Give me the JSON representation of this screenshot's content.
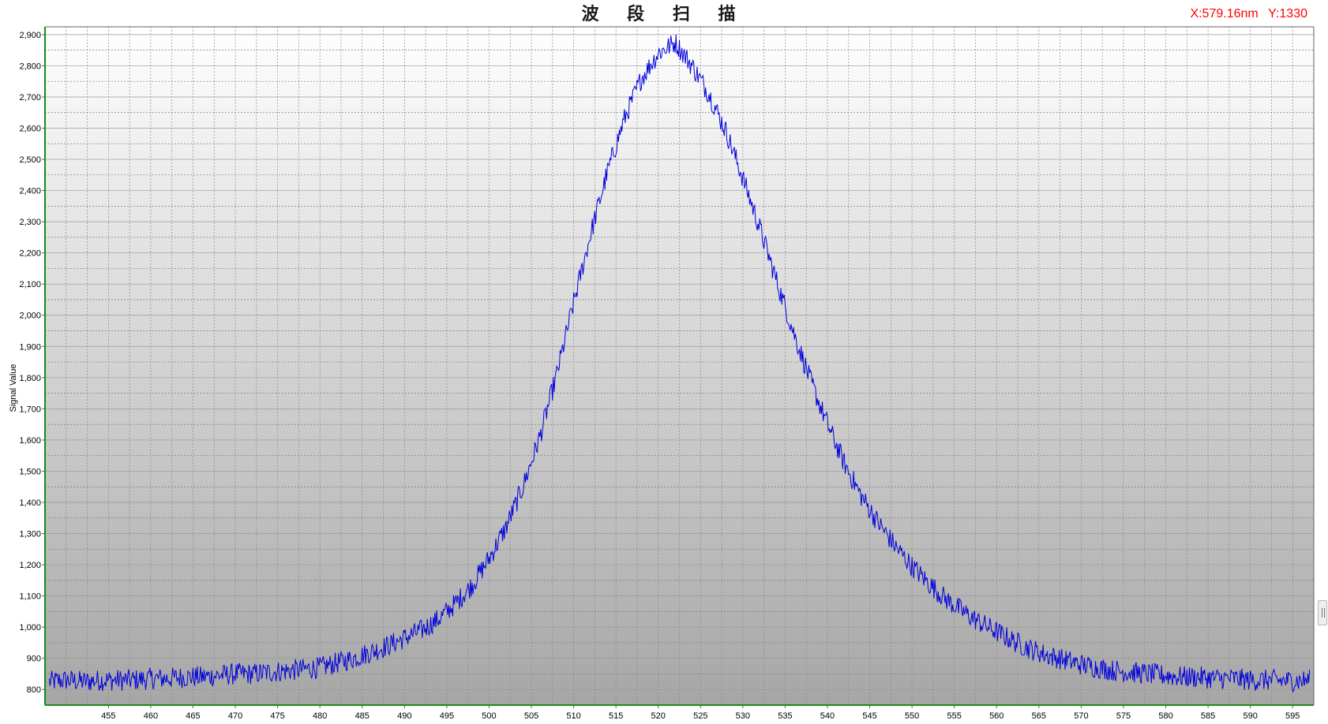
{
  "title": "波 段 扫 描",
  "cursor_readout": {
    "x": "X:579.16nm",
    "y": "Y:1330"
  },
  "colors": {
    "series": "#0000dd",
    "axis": "#1a8a1a",
    "readout": "#ff0000",
    "plot_top": "#ffffff",
    "plot_bottom": "#a6a6a6"
  },
  "chart_data": {
    "type": "line",
    "title": "波 段 扫 描",
    "xlabel": "",
    "ylabel": "Signal Value",
    "xlim": [
      447.5,
      597.5
    ],
    "ylim": [
      750,
      2925
    ],
    "grid": true,
    "x_ticks": [
      455,
      460,
      465,
      470,
      475,
      480,
      485,
      490,
      495,
      500,
      505,
      510,
      515,
      520,
      525,
      530,
      535,
      540,
      545,
      550,
      555,
      560,
      565,
      570,
      575,
      580,
      585,
      590,
      595
    ],
    "x_tick_labels": [
      "455",
      "460",
      "465",
      "470",
      "475",
      "480",
      "485",
      "490",
      "495",
      "500",
      "505",
      "510",
      "515",
      "520",
      "525",
      "530",
      "535",
      "540",
      "545",
      "550",
      "555",
      "560",
      "565",
      "570",
      "575",
      "580",
      "585",
      "590",
      "595"
    ],
    "y_ticks": [
      800,
      900,
      1000,
      1100,
      1200,
      1300,
      1400,
      1500,
      1600,
      1700,
      1800,
      1900,
      2000,
      2100,
      2200,
      2300,
      2400,
      2500,
      2600,
      2700,
      2800,
      2900
    ],
    "y_tick_labels": [
      "800",
      "900",
      "1,000",
      "1,100",
      "1,200",
      "1,300",
      "1,400",
      "1,500",
      "1,600",
      "1,700",
      "1,800",
      "1,900",
      "2,000",
      "2,100",
      "2,200",
      "2,300",
      "2,400",
      "2,500",
      "2,600",
      "2,700",
      "2,800",
      "2,900"
    ],
    "series": [
      {
        "x": [
          448,
          450,
          452,
          454,
          456,
          458,
          460,
          462,
          464,
          466,
          468,
          470,
          472,
          474,
          476,
          478,
          480,
          482,
          484,
          486,
          488,
          490,
          492,
          494,
          496,
          498,
          500,
          502,
          504,
          506,
          508,
          510,
          512,
          514,
          516,
          518,
          520,
          522,
          524,
          526,
          528,
          530,
          532,
          534,
          536,
          538,
          540,
          542,
          544,
          546,
          548,
          550,
          552,
          554,
          556,
          558,
          560,
          562,
          564,
          566,
          568,
          570,
          572,
          574,
          576,
          578,
          580,
          582,
          584,
          586,
          588,
          590,
          592,
          594,
          596,
          597
        ],
        "y": [
          825,
          830,
          825,
          830,
          830,
          830,
          835,
          835,
          840,
          840,
          845,
          850,
          850,
          855,
          860,
          865,
          870,
          885,
          900,
          920,
          940,
          965,
          990,
          1025,
          1075,
          1135,
          1220,
          1320,
          1450,
          1610,
          1810,
          2040,
          2260,
          2460,
          2630,
          2760,
          2840,
          2875,
          2800,
          2710,
          2590,
          2440,
          2280,
          2110,
          1945,
          1790,
          1650,
          1525,
          1420,
          1335,
          1260,
          1195,
          1140,
          1090,
          1050,
          1015,
          985,
          955,
          930,
          910,
          895,
          880,
          870,
          860,
          855,
          850,
          845,
          840,
          840,
          835,
          835,
          830,
          830,
          828,
          828,
          830
        ],
        "noise_amplitude": 35
      }
    ]
  }
}
